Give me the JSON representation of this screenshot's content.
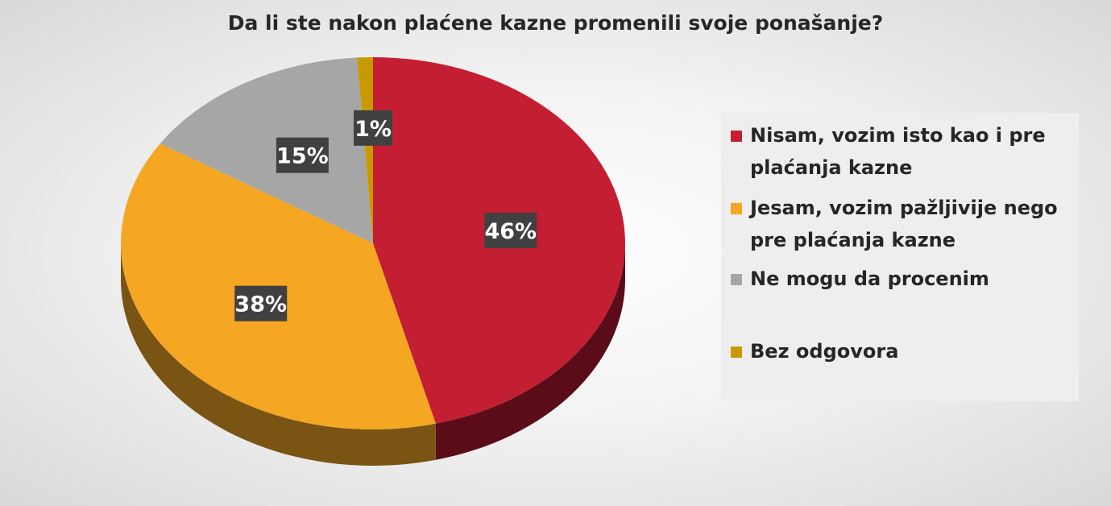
{
  "chart_data": {
    "type": "pie",
    "title": "Da li ste nakon plaćene kazne promenili svoje ponašanje?",
    "slices": [
      {
        "label": "Nisam, vozim isto kao i pre plaćanja kazne",
        "value": 46,
        "data_label": "46%",
        "color": "#c41e32",
        "side_color": "#5a0d18"
      },
      {
        "label": "Jesam, vozim pažljivije nego pre plaćanja kazne",
        "value": 38,
        "data_label": "38%",
        "color": "#f5a623",
        "side_color": "#7a5412"
      },
      {
        "label": "Ne mogu da procenim",
        "value": 15,
        "data_label": "15%",
        "color": "#a6a6a6",
        "side_color": "#555555"
      },
      {
        "label": "Bez odgovora",
        "value": 1,
        "data_label": "1%",
        "color": "#c89a00",
        "side_color": "#664f00"
      }
    ],
    "legend_position": "right",
    "data_label_style": {
      "background": "#404040",
      "text_color": "#ffffff"
    }
  }
}
